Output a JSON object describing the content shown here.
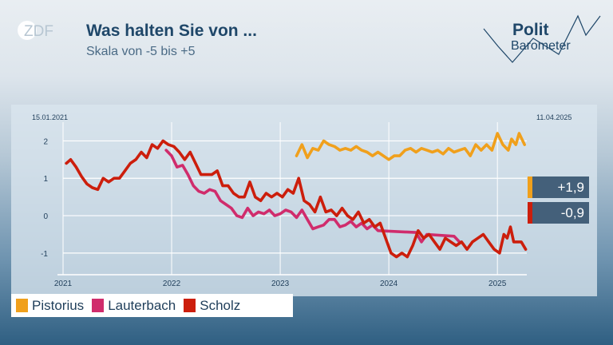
{
  "header": {
    "broadcaster_logo": "ZDF",
    "title": "Was halten Sie von ...",
    "subtitle": "Skala von -5 bis +5",
    "brand_line1": "Polit",
    "brand_line2": "Barometer"
  },
  "colors": {
    "Pistorius": "#f0a01c",
    "Lauterbach": "#d02c6c",
    "Scholz": "#cc1e0c",
    "text_dark": "#1f4769"
  },
  "chart_data": {
    "type": "line",
    "title": "Was halten Sie von ...",
    "subtitle": "Skala von -5 bis +5",
    "date_start": "15.01.2021",
    "date_end": "11.04.2025",
    "x_unit": "year",
    "xlim": [
      2021.0,
      2025.3
    ],
    "ylim": [
      -1.6,
      2.5
    ],
    "x_ticks": [
      2021,
      2022,
      2023,
      2024,
      2025
    ],
    "x_tick_labels": [
      "2021",
      "2022",
      "2023",
      "2024",
      "2025"
    ],
    "y_ticks": [
      2,
      1,
      0,
      -1
    ],
    "y_tick_labels": [
      "2",
      "1",
      "0",
      "-1"
    ],
    "grid": "horizontal",
    "legend_position": "bottom-left",
    "series": [
      {
        "name": "Pistorius",
        "x": [
          2023.15,
          2023.2,
          2023.25,
          2023.3,
          2023.35,
          2023.4,
          2023.45,
          2023.5,
          2023.55,
          2023.6,
          2023.65,
          2023.7,
          2023.75,
          2023.8,
          2023.85,
          2023.9,
          2023.95,
          2024.0,
          2024.05,
          2024.1,
          2024.15,
          2024.2,
          2024.25,
          2024.3,
          2024.35,
          2024.4,
          2024.45,
          2024.5,
          2024.55,
          2024.6,
          2024.65,
          2024.7,
          2024.75,
          2024.8,
          2024.85,
          2024.9,
          2024.95,
          2025.0,
          2025.05,
          2025.1,
          2025.13,
          2025.17,
          2025.2,
          2025.25
        ],
        "values": [
          1.6,
          1.9,
          1.55,
          1.8,
          1.75,
          2.0,
          1.9,
          1.85,
          1.75,
          1.8,
          1.75,
          1.85,
          1.75,
          1.7,
          1.6,
          1.7,
          1.6,
          1.5,
          1.6,
          1.6,
          1.75,
          1.8,
          1.7,
          1.8,
          1.75,
          1.7,
          1.75,
          1.65,
          1.8,
          1.7,
          1.75,
          1.8,
          1.6,
          1.9,
          1.75,
          1.9,
          1.75,
          2.2,
          1.9,
          1.75,
          2.05,
          1.9,
          2.2,
          1.9
        ]
      },
      {
        "name": "Lauterbach",
        "x": [
          2021.95,
          2022.0,
          2022.05,
          2022.1,
          2022.15,
          2022.2,
          2022.25,
          2022.3,
          2022.35,
          2022.4,
          2022.45,
          2022.5,
          2022.55,
          2022.6,
          2022.65,
          2022.7,
          2022.75,
          2022.8,
          2022.85,
          2022.9,
          2022.95,
          2023.0,
          2023.05,
          2023.1,
          2023.15,
          2023.2,
          2023.25,
          2023.3,
          2023.35,
          2023.4,
          2023.45,
          2023.5,
          2023.55,
          2023.6,
          2023.65,
          2023.7,
          2023.75,
          2023.8,
          2023.85,
          2023.9,
          2024.25,
          2024.3,
          2024.35,
          2024.6,
          2024.65
        ],
        "values": [
          1.75,
          1.6,
          1.3,
          1.35,
          1.1,
          0.8,
          0.65,
          0.6,
          0.7,
          0.65,
          0.4,
          0.3,
          0.2,
          0.0,
          -0.05,
          0.2,
          0.0,
          0.1,
          0.05,
          0.15,
          0.0,
          0.05,
          0.15,
          0.1,
          -0.05,
          0.15,
          -0.1,
          -0.35,
          -0.3,
          -0.25,
          -0.1,
          -0.1,
          -0.3,
          -0.25,
          -0.15,
          -0.3,
          -0.2,
          -0.35,
          -0.25,
          -0.4,
          -0.45,
          -0.7,
          -0.5,
          -0.55,
          -0.7
        ]
      },
      {
        "name": "Scholz",
        "x": [
          2021.03,
          2021.07,
          2021.12,
          2021.17,
          2021.22,
          2021.27,
          2021.32,
          2021.37,
          2021.42,
          2021.47,
          2021.52,
          2021.57,
          2021.62,
          2021.67,
          2021.72,
          2021.77,
          2021.82,
          2021.87,
          2021.92,
          2021.97,
          2022.02,
          2022.07,
          2022.12,
          2022.17,
          2022.22,
          2022.27,
          2022.32,
          2022.37,
          2022.42,
          2022.47,
          2022.52,
          2022.57,
          2022.62,
          2022.67,
          2022.72,
          2022.77,
          2022.82,
          2022.87,
          2022.92,
          2022.97,
          2023.02,
          2023.07,
          2023.12,
          2023.17,
          2023.22,
          2023.27,
          2023.32,
          2023.37,
          2023.42,
          2023.47,
          2023.52,
          2023.57,
          2023.62,
          2023.67,
          2023.72,
          2023.77,
          2023.82,
          2023.87,
          2023.92,
          2023.97,
          2024.02,
          2024.07,
          2024.12,
          2024.17,
          2024.22,
          2024.27,
          2024.32,
          2024.37,
          2024.42,
          2024.47,
          2024.52,
          2024.57,
          2024.62,
          2024.67,
          2024.72,
          2024.77,
          2024.82,
          2024.87,
          2024.92,
          2024.97,
          2025.02,
          2025.06,
          2025.09,
          2025.12,
          2025.15,
          2025.19,
          2025.22,
          2025.26
        ],
        "values": [
          1.4,
          1.5,
          1.3,
          1.05,
          0.85,
          0.75,
          0.7,
          1.0,
          0.9,
          1.0,
          1.0,
          1.2,
          1.4,
          1.5,
          1.7,
          1.55,
          1.9,
          1.8,
          2.0,
          1.9,
          1.85,
          1.7,
          1.5,
          1.7,
          1.4,
          1.1,
          1.1,
          1.1,
          1.2,
          0.8,
          0.8,
          0.6,
          0.5,
          0.5,
          0.9,
          0.5,
          0.4,
          0.6,
          0.5,
          0.6,
          0.5,
          0.7,
          0.6,
          1.0,
          0.4,
          0.3,
          0.1,
          0.5,
          0.1,
          0.15,
          0.0,
          0.2,
          0.0,
          -0.1,
          0.1,
          -0.2,
          -0.1,
          -0.3,
          -0.2,
          -0.6,
          -1.0,
          -1.1,
          -1.0,
          -1.1,
          -0.8,
          -0.4,
          -0.6,
          -0.5,
          -0.7,
          -0.9,
          -0.6,
          -0.7,
          -0.8,
          -0.7,
          -0.9,
          -0.7,
          -0.6,
          -0.5,
          -0.7,
          -0.9,
          -1.0,
          -0.5,
          -0.6,
          -0.3,
          -0.7,
          -0.7,
          -0.7,
          -0.9
        ]
      }
    ],
    "end_labels": [
      {
        "series": "Pistorius",
        "label": "+1,9"
      },
      {
        "series": "Scholz",
        "label": "-0,9"
      }
    ]
  },
  "legend": [
    {
      "label": "Pistorius",
      "color": "#f0a01c"
    },
    {
      "label": "Lauterbach",
      "color": "#d02c6c"
    },
    {
      "label": "Scholz",
      "color": "#cc1e0c"
    }
  ]
}
